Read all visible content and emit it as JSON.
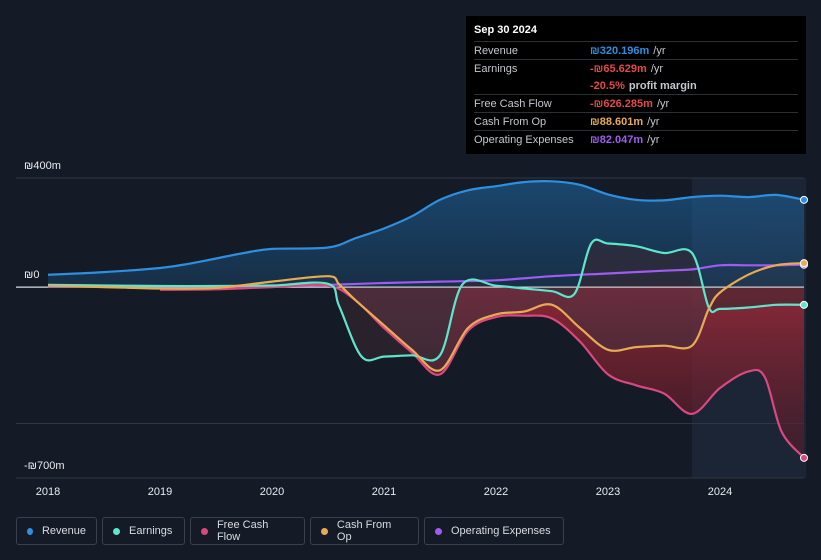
{
  "tooltip": {
    "date": "Sep 30 2024",
    "rows": [
      {
        "label": "Revenue",
        "value": "₪320.196m",
        "unit": "/yr",
        "color": "#2e8fe0"
      },
      {
        "label": "Earnings",
        "value": "-₪65.629m",
        "unit": "/yr",
        "color": "#e24a4a"
      },
      {
        "label": "",
        "value": "-20.5%",
        "unit": "profit margin",
        "color": "#e24a4a"
      },
      {
        "label": "Free Cash Flow",
        "value": "-₪626.285m",
        "unit": "/yr",
        "color": "#e24a4a"
      },
      {
        "label": "Cash From Op",
        "value": "₪88.601m",
        "unit": "/yr",
        "color": "#e8ab55"
      },
      {
        "label": "Operating Expenses",
        "value": "₪82.047m",
        "unit": "/yr",
        "color": "#a05cf0"
      }
    ]
  },
  "chart_data": {
    "type": "area",
    "title": "",
    "xlabel": "",
    "ylabel": "",
    "ylim": [
      -700,
      400
    ],
    "y_tick_labels": {
      "top": "₪400m",
      "zero": "₪0",
      "bottom": "-₪700m"
    },
    "x_ticks": [
      2018,
      2019,
      2020,
      2021,
      2022,
      2023,
      2024
    ],
    "x_range": [
      2018.0,
      2024.75
    ],
    "forecast_start": 2023.75,
    "series": [
      {
        "name": "Revenue",
        "color": "#2e8fe0",
        "x": [
          2018.0,
          2018.5,
          2019.0,
          2019.25,
          2019.5,
          2019.75,
          2020.0,
          2020.5,
          2020.75,
          2021.0,
          2021.25,
          2021.5,
          2021.75,
          2022.0,
          2022.25,
          2022.5,
          2022.75,
          2023.0,
          2023.25,
          2023.5,
          2023.75,
          2024.0,
          2024.25,
          2024.5,
          2024.75
        ],
        "values": [
          45,
          55,
          70,
          85,
          105,
          125,
          140,
          145,
          180,
          215,
          260,
          320,
          355,
          370,
          385,
          388,
          375,
          340,
          320,
          318,
          330,
          335,
          330,
          338,
          320
        ]
      },
      {
        "name": "Earnings",
        "color": "#5ee6cc",
        "x": [
          2018.0,
          2018.5,
          2019.0,
          2019.5,
          2020.0,
          2020.5,
          2020.6,
          2020.8,
          2021.0,
          2021.25,
          2021.5,
          2021.7,
          2022.0,
          2022.25,
          2022.5,
          2022.7,
          2022.85,
          2023.0,
          2023.25,
          2023.5,
          2023.75,
          2023.9,
          2024.0,
          2024.25,
          2024.5,
          2024.75
        ],
        "values": [
          8,
          6,
          4,
          4,
          6,
          12,
          -70,
          -255,
          -255,
          -250,
          -250,
          10,
          5,
          -5,
          -15,
          -25,
          160,
          160,
          150,
          125,
          125,
          -75,
          -80,
          -75,
          -65,
          -65
        ]
      },
      {
        "name": "Free Cash Flow",
        "color": "#d9487f",
        "x": [
          2019.0,
          2019.5,
          2020.0,
          2020.5,
          2020.75,
          2021.0,
          2021.25,
          2021.5,
          2021.75,
          2022.0,
          2022.25,
          2022.5,
          2022.75,
          2023.0,
          2023.25,
          2023.5,
          2023.75,
          2024.0,
          2024.25,
          2024.4,
          2024.55,
          2024.75
        ],
        "values": [
          -10,
          -8,
          0,
          5,
          -50,
          -150,
          -240,
          -320,
          -160,
          -110,
          -105,
          -115,
          -200,
          -320,
          -360,
          -390,
          -465,
          -370,
          -310,
          -330,
          -530,
          -626
        ]
      },
      {
        "name": "Cash From Op",
        "color": "#e8ab55",
        "x": [
          2018.0,
          2018.5,
          2019.0,
          2019.5,
          2020.0,
          2020.5,
          2020.6,
          2020.75,
          2021.0,
          2021.25,
          2021.5,
          2021.75,
          2022.0,
          2022.25,
          2022.5,
          2022.75,
          2023.0,
          2023.25,
          2023.5,
          2023.75,
          2023.9,
          2024.0,
          2024.25,
          2024.5,
          2024.75
        ],
        "values": [
          5,
          0,
          -5,
          -3,
          20,
          40,
          10,
          -50,
          -140,
          -230,
          -305,
          -150,
          -100,
          -90,
          -65,
          -150,
          -230,
          -220,
          -215,
          -215,
          -80,
          -20,
          45,
          80,
          88
        ]
      },
      {
        "name": "Operating Expenses",
        "color": "#a05cf0",
        "x": [
          2018.0,
          2018.5,
          2019.0,
          2019.5,
          2020.0,
          2020.5,
          2021.0,
          2021.5,
          2022.0,
          2022.5,
          2023.0,
          2023.5,
          2023.75,
          2024.0,
          2024.25,
          2024.5,
          2024.75
        ],
        "values": [
          3,
          3,
          3,
          3,
          3,
          8,
          15,
          20,
          25,
          40,
          50,
          60,
          65,
          80,
          80,
          80,
          82
        ]
      }
    ]
  },
  "legend": [
    "Revenue",
    "Earnings",
    "Free Cash Flow",
    "Cash From Op",
    "Operating Expenses"
  ]
}
